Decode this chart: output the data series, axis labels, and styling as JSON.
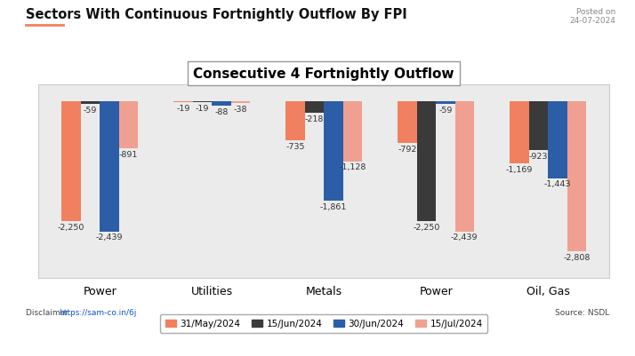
{
  "title": "Sectors With Continuous Fortnightly Outflow By FPI",
  "chart_title": "Consecutive 4 Fortnightly Outflow",
  "posted": "Posted on\n24-07-2024",
  "source": "Source: NSDL",
  "disclaimer_label": "Disclaimer: ",
  "disclaimer_link": "https://sam-co.in/6j",
  "categories": [
    "Power",
    "Utilities",
    "Metals",
    "Power",
    "Oil, Gas"
  ],
  "series_labels": [
    "31/May/2024",
    "15/Jun/2024",
    "30/Jun/2024",
    "15/Jul/2024"
  ],
  "data": {
    "31/May/2024": [
      -2250,
      -19,
      -735,
      -792,
      -1169
    ],
    "15/Jun/2024": [
      -59,
      -19,
      -218,
      -2250,
      -923
    ],
    "30/Jun/2024": [
      -2439,
      -88,
      -1861,
      -59,
      -1443
    ],
    "15/Jul/2024": [
      -891,
      -38,
      -1128,
      -2439,
      -2808
    ]
  },
  "bar_colors": [
    "#F08060",
    "#3A3A3A",
    "#2B5EA7",
    "#F0A090"
  ],
  "legend_colors": [
    "#F08060",
    "#3A3A3A",
    "#2B5EA7",
    "#F0A090"
  ],
  "ylim": [
    -3300,
    300
  ],
  "chart_bg": "#EBEBEB",
  "outer_bg": "#FFFFFF",
  "border_color": "#CCCCCC",
  "footer_color": "#F08060",
  "footer_text_color": "#FFFFFF",
  "title_underline_color": "#F08060",
  "label_fontsize": 6.8,
  "cat_fontsize": 9,
  "chart_title_fontsize": 11
}
